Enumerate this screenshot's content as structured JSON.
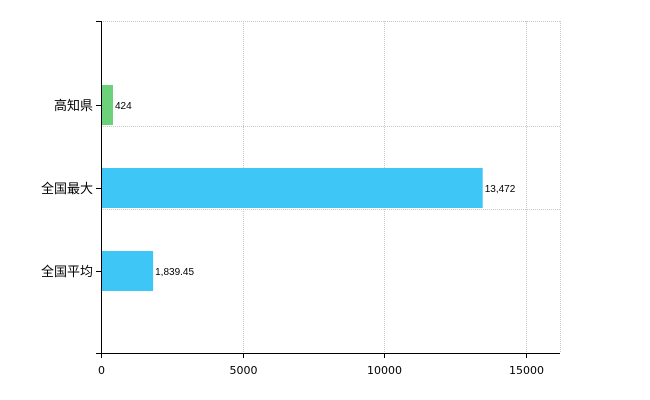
{
  "chart_data": {
    "type": "bar",
    "orientation": "horizontal",
    "categories": [
      "高知県",
      "全国最大",
      "全国平均"
    ],
    "values": [
      424,
      13472,
      1839.45
    ],
    "value_labels": [
      "424",
      "13,472",
      "1,839.45"
    ],
    "bar_colors": [
      "#6cd17a",
      "#3ec6f7",
      "#3ec6f7"
    ],
    "xlim": [
      0,
      16200
    ],
    "xticks": [
      0,
      5000,
      10000,
      15000
    ],
    "xtick_labels": [
      "0",
      "5000",
      "10000",
      "15000"
    ],
    "grid": true,
    "legend": "none",
    "title": "",
    "xlabel": "",
    "ylabel": ""
  }
}
